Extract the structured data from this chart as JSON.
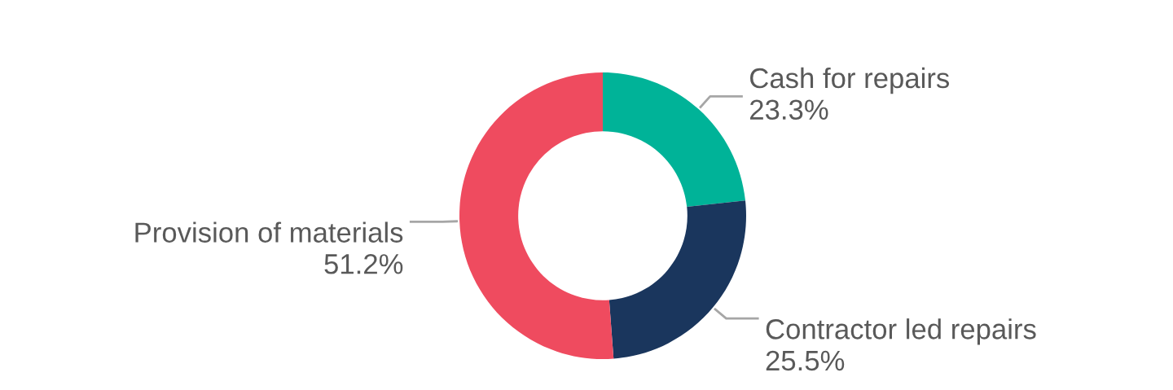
{
  "chart_data": {
    "type": "donut",
    "categories": [
      "Cash for repairs",
      "Contractor led repairs",
      "Provision of materials"
    ],
    "values": [
      23.3,
      25.5,
      51.2
    ],
    "value_labels": [
      "23.3%",
      "25.5%",
      "51.2%"
    ],
    "colors": [
      "#00b398",
      "#1a365d",
      "#ef4b5f"
    ],
    "legend": false
  }
}
